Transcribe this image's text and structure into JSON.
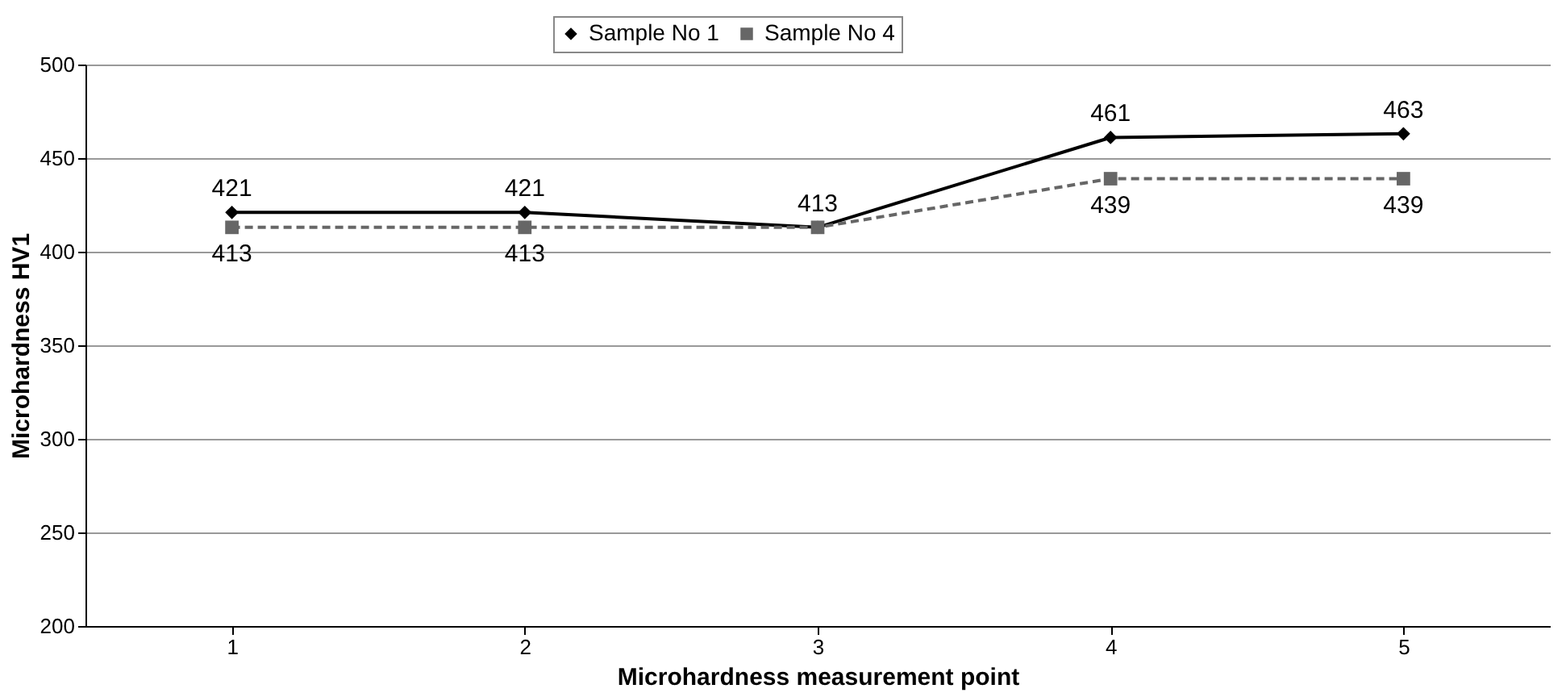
{
  "chart_data": {
    "type": "line",
    "xlabel": "Microhardness measurement point",
    "ylabel": "Microhardness HV1",
    "categories": [
      "1",
      "2",
      "3",
      "4",
      "5"
    ],
    "series": [
      {
        "name": "Sample No 1",
        "color": "#000000",
        "marker": "diamond",
        "line_style": "solid",
        "values": [
          421,
          421,
          413,
          461,
          463
        ],
        "value_labels": [
          "421",
          "421",
          "413",
          "461",
          "463"
        ]
      },
      {
        "name": "Sample No 4",
        "color": "#666666",
        "marker": "square",
        "line_style": "dashed",
        "values": [
          413,
          413,
          413,
          439,
          439
        ],
        "value_labels": [
          "413",
          "413",
          null,
          "439",
          "439"
        ]
      }
    ],
    "ylim": [
      200,
      500
    ],
    "yticks": [
      200,
      250,
      300,
      350,
      400,
      450,
      500
    ],
    "grid": "y",
    "legend": "top"
  }
}
